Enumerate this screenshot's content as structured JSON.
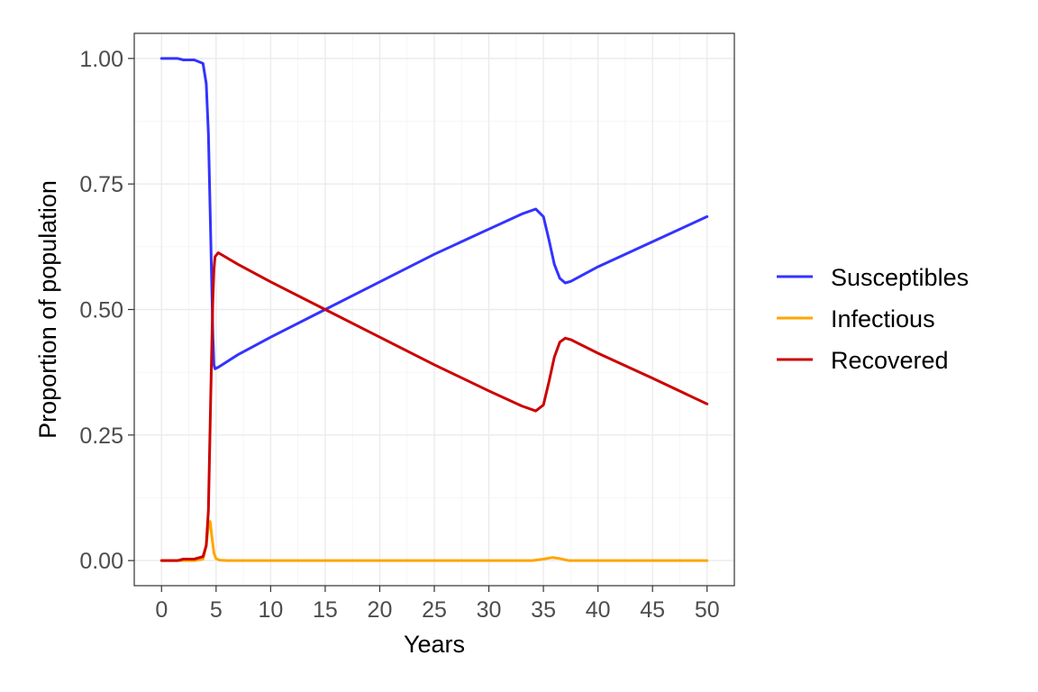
{
  "chart_data": {
    "type": "line",
    "xlabel": "Years",
    "ylabel": "Proportion of population",
    "xlim": [
      -2.5,
      52.5
    ],
    "ylim": [
      -0.05,
      1.05
    ],
    "x_ticks": [
      0,
      5,
      10,
      15,
      20,
      25,
      30,
      35,
      40,
      45,
      50
    ],
    "x_tick_labels": [
      "0",
      "5",
      "10",
      "15",
      "20",
      "25",
      "30",
      "35",
      "40",
      "45",
      "50"
    ],
    "y_ticks": [
      0,
      0.25,
      0.5,
      0.75,
      1.0
    ],
    "y_tick_labels": [
      "0.00",
      "0.25",
      "0.50",
      "0.75",
      "1.00"
    ],
    "grid": true,
    "legend_position": "right",
    "series": [
      {
        "name": "Susceptibles",
        "color": "#3333ff",
        "x": [
          0,
          1.5,
          2,
          3,
          3.8,
          4.1,
          4.3,
          4.5,
          4.7,
          4.8,
          4.9,
          5.2,
          7,
          10,
          15,
          20,
          25,
          30,
          33,
          34.3,
          35,
          35.5,
          36,
          36.5,
          37,
          37.5,
          40,
          45,
          50
        ],
        "y": [
          1.0,
          1.0,
          0.997,
          0.997,
          0.99,
          0.95,
          0.85,
          0.65,
          0.45,
          0.39,
          0.382,
          0.385,
          0.41,
          0.445,
          0.5,
          0.555,
          0.61,
          0.66,
          0.69,
          0.7,
          0.685,
          0.64,
          0.59,
          0.562,
          0.553,
          0.556,
          0.585,
          0.635,
          0.685
        ]
      },
      {
        "name": "Infectious",
        "color": "#ffa500",
        "x": [
          0,
          3,
          3.8,
          4.1,
          4.3,
          4.45,
          4.6,
          4.8,
          5.0,
          5.3,
          6,
          34,
          35,
          35.8,
          36.5,
          37.3,
          40,
          50
        ],
        "y": [
          0,
          0,
          0.003,
          0.03,
          0.07,
          0.078,
          0.05,
          0.015,
          0.004,
          0.001,
          0,
          0,
          0.003,
          0.006,
          0.004,
          0.0,
          0,
          0
        ]
      },
      {
        "name": "Recovered",
        "color": "#cc0000",
        "x": [
          0,
          1.5,
          2,
          3,
          3.8,
          4.1,
          4.3,
          4.5,
          4.7,
          4.8,
          4.9,
          5.2,
          7,
          10,
          15,
          20,
          25,
          30,
          33,
          34.3,
          35,
          35.5,
          36,
          36.5,
          37,
          37.5,
          40,
          45,
          50
        ],
        "y": [
          0.0,
          0.0,
          0.003,
          0.003,
          0.008,
          0.03,
          0.1,
          0.32,
          0.52,
          0.58,
          0.605,
          0.613,
          0.59,
          0.555,
          0.5,
          0.445,
          0.39,
          0.338,
          0.308,
          0.298,
          0.31,
          0.355,
          0.405,
          0.435,
          0.443,
          0.44,
          0.413,
          0.363,
          0.312
        ]
      }
    ]
  }
}
